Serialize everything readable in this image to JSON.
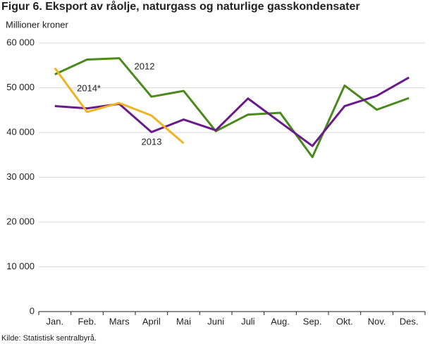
{
  "chart_data": {
    "type": "line",
    "title": "Figur 6. Eksport av råolje, naturgass og naturlige gasskondensater",
    "y_label": "Millioner kroner",
    "source": "Kilde: Statistisk sentralbyrå.",
    "categories": [
      "Jan.",
      "Feb.",
      "Mars",
      "April",
      "Mai",
      "Juni",
      "Juli",
      "Aug.",
      "Sep.",
      "Okt.",
      "Nov.",
      "Des."
    ],
    "series": [
      {
        "name": "2012",
        "color": "#4a8a1c",
        "values": [
          53000,
          56300,
          56600,
          48000,
          49300,
          40300,
          44000,
          44400,
          34500,
          50500,
          45100,
          47700
        ]
      },
      {
        "name": "2013",
        "color": "#6a1a8a",
        "values": [
          45900,
          45400,
          46400,
          40100,
          42900,
          40500,
          47600,
          42300,
          37000,
          45900,
          48200,
          52300
        ]
      },
      {
        "name": "2014*",
        "color": "#f0b323",
        "values": [
          54400,
          44600,
          46600,
          43800,
          37600,
          null,
          null,
          null,
          null,
          null,
          null,
          null
        ]
      }
    ],
    "ylim": [
      0,
      60000
    ],
    "yticks": [
      0,
      {
        "value": 10000,
        "label": "10 000"
      },
      {
        "value": 20000,
        "label": "20 000"
      },
      {
        "value": 30000,
        "label": "30 000"
      },
      {
        "value": 40000,
        "label": "40 000"
      },
      {
        "value": 50000,
        "label": "50 000"
      },
      {
        "value": 60000,
        "label": "60 000"
      }
    ],
    "grid": true
  }
}
